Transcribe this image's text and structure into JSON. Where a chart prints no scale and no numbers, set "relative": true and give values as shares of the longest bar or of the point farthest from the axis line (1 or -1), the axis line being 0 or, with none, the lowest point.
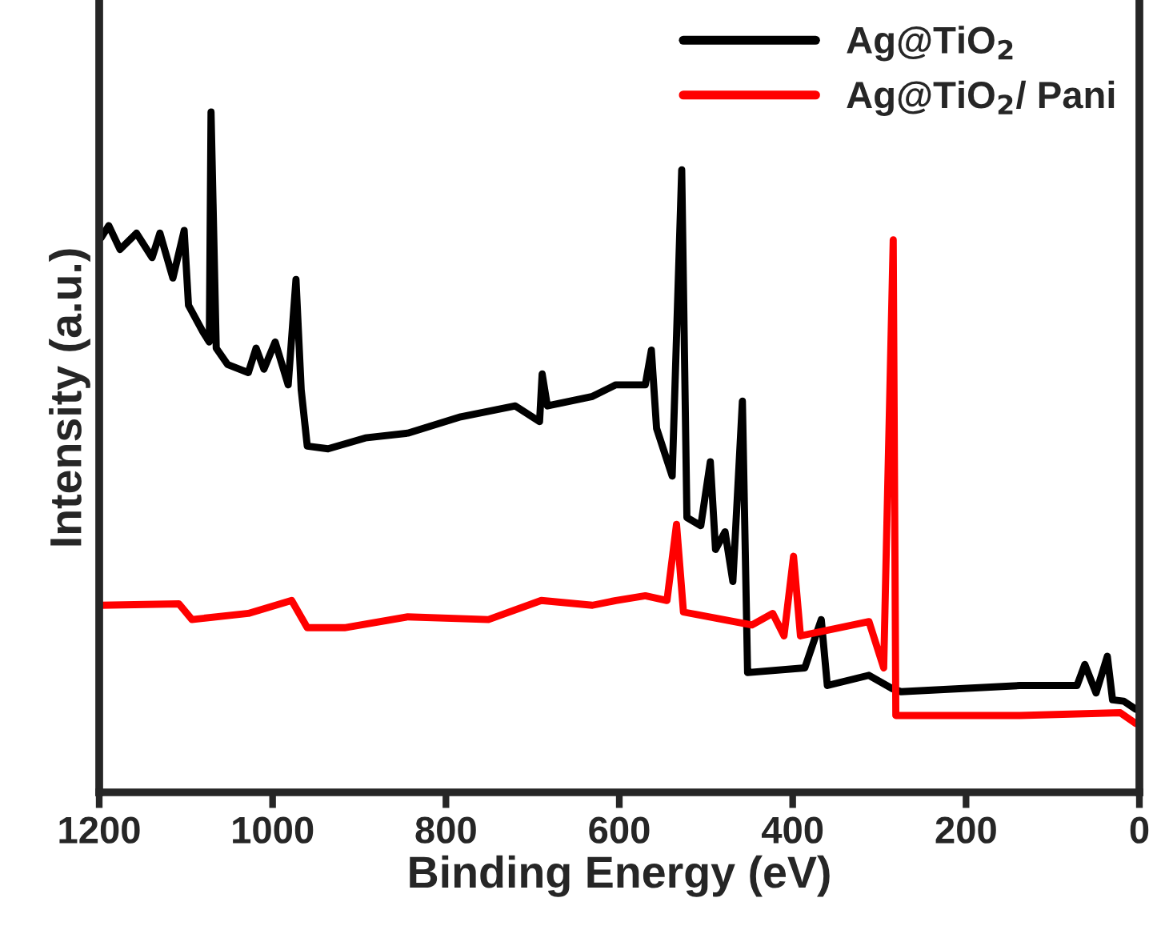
{
  "chart_data": {
    "type": "line",
    "relative": true,
    "xlabel": "Binding Energy (eV)",
    "ylabel": "Intensity (a.u.)",
    "xlim": [
      1200,
      0
    ],
    "xticks": [
      1200,
      1000,
      800,
      600,
      400,
      200,
      0
    ],
    "legend": "top right",
    "grid": false,
    "marker": "none",
    "line_style": "solid",
    "series": [
      {
        "name": "Ag@TiO$_{2}$",
        "color": "#000000",
        "x": [
          1198,
          1189,
          1176,
          1157,
          1139,
          1130,
          1115,
          1102,
          1097,
          1080,
          1073,
          1071,
          1065,
          1052,
          1028,
          1019,
          1010,
          997,
          982,
          973,
          967,
          960,
          936,
          893,
          844,
          783,
          720,
          692,
          689,
          683,
          631,
          604,
          570,
          563,
          557,
          539,
          528,
          522,
          506,
          495,
          489,
          478,
          469,
          458,
          452,
          386,
          367,
          360,
          312,
          286,
          275,
          138,
          72,
          63,
          50,
          37,
          31,
          18,
          4
        ],
        "values": [
          0.815,
          0.833,
          0.798,
          0.822,
          0.786,
          0.822,
          0.756,
          0.826,
          0.716,
          0.676,
          0.662,
          1.0,
          0.653,
          0.629,
          0.617,
          0.653,
          0.622,
          0.662,
          0.599,
          0.754,
          0.592,
          0.509,
          0.505,
          0.521,
          0.528,
          0.552,
          0.568,
          0.545,
          0.615,
          0.568,
          0.582,
          0.599,
          0.599,
          0.65,
          0.535,
          0.465,
          0.915,
          0.404,
          0.392,
          0.486,
          0.357,
          0.383,
          0.31,
          0.575,
          0.176,
          0.183,
          0.254,
          0.157,
          0.172,
          0.153,
          0.148,
          0.157,
          0.157,
          0.188,
          0.146,
          0.2,
          0.136,
          0.134,
          0.122
        ]
      },
      {
        "name": "Ag@TiO$_{2}$/ Pani",
        "color": "#ff0000",
        "x": [
          1198,
          1108,
          1093,
          1028,
          978,
          960,
          917,
          844,
          751,
          690,
          631,
          604,
          570,
          545,
          534,
          526,
          447,
          423,
          410,
          399,
          391,
          312,
          295,
          284,
          281,
          138,
          22,
          4
        ],
        "values": [
          0.275,
          0.277,
          0.254,
          0.263,
          0.282,
          0.242,
          0.242,
          0.258,
          0.254,
          0.282,
          0.275,
          0.282,
          0.289,
          0.282,
          0.394,
          0.265,
          0.246,
          0.263,
          0.23,
          0.347,
          0.23,
          0.251,
          0.183,
          0.812,
          0.113,
          0.113,
          0.117,
          0.101
        ]
      }
    ]
  }
}
